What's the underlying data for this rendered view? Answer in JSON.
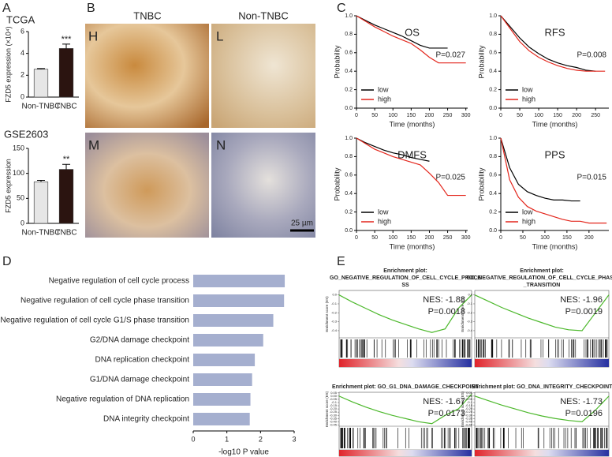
{
  "panel_letters": [
    "A",
    "B",
    "C",
    "D",
    "E"
  ],
  "micrographs": {
    "columns": [
      "TNBC",
      "Non-TNBC"
    ],
    "labels": [
      "H",
      "L",
      "M",
      "N"
    ],
    "scale_bar": "25 µm"
  },
  "chart_data": [
    {
      "type": "bar",
      "title": "TCGA",
      "y_label": "FZD5 expression (×10⁴)",
      "categories": [
        "Non-TNBC",
        "TNBC"
      ],
      "values": [
        2.55,
        4.45
      ],
      "errors": [
        0.06,
        0.4
      ],
      "colors": [
        "#e6e6e6",
        "#2b1410"
      ],
      "significance": [
        null,
        "***"
      ],
      "ylim": [
        0,
        6
      ],
      "yticks": [
        0,
        2,
        4,
        6
      ]
    },
    {
      "type": "bar",
      "title": "GSE2603",
      "y_label": "FZD5 expression",
      "categories": [
        "Non-TNBC",
        "TNBC"
      ],
      "values": [
        83,
        108
      ],
      "errors": [
        3,
        10
      ],
      "colors": [
        "#e6e6e6",
        "#2b1410"
      ],
      "significance": [
        null,
        "**"
      ],
      "ylim": [
        0,
        150
      ],
      "yticks": [
        0,
        50,
        100,
        150
      ]
    },
    {
      "type": "line",
      "title": "OS",
      "annotation": "P=0.027",
      "x_label": "Time (months)",
      "y_label": "Probability",
      "x": [
        0,
        25,
        50,
        75,
        100,
        125,
        150,
        175,
        200,
        225,
        250,
        300
      ],
      "series": [
        {
          "name": "low",
          "color": "#000000",
          "values": [
            1,
            0.95,
            0.9,
            0.86,
            0.82,
            0.78,
            0.73,
            0.68,
            0.65,
            0.65,
            0.65,
            null
          ]
        },
        {
          "name": "high",
          "color": "#e3261c",
          "values": [
            1,
            0.94,
            0.88,
            0.83,
            0.78,
            0.74,
            0.7,
            0.63,
            0.55,
            0.49,
            0.49,
            0.49
          ]
        }
      ],
      "xlim": [
        0,
        305
      ],
      "xticks": [
        0,
        50,
        100,
        150,
        200,
        250,
        300
      ],
      "ylim": [
        0,
        1
      ],
      "yticks": [
        {
          "value": 0,
          "label": "0.0"
        },
        0.2,
        0.4,
        0.6,
        0.8,
        {
          "value": 1,
          "label": "1.0"
        }
      ]
    },
    {
      "type": "line",
      "title": "RFS",
      "annotation": "P=0.008",
      "x_label": "Time (months)",
      "y_label": "Probability",
      "x": [
        0,
        25,
        50,
        75,
        100,
        125,
        150,
        175,
        200,
        225,
        250,
        275
      ],
      "series": [
        {
          "name": "low",
          "color": "#000000",
          "values": [
            1,
            0.88,
            0.76,
            0.66,
            0.59,
            0.53,
            0.49,
            0.46,
            0.44,
            0.41,
            0.4,
            null
          ]
        },
        {
          "name": "high",
          "color": "#e3261c",
          "values": [
            1,
            0.86,
            0.72,
            0.62,
            0.55,
            0.5,
            0.46,
            0.43,
            0.41,
            0.4,
            0.4,
            0.4
          ]
        }
      ],
      "xlim": [
        0,
        285
      ],
      "xticks": [
        0,
        50,
        100,
        150,
        200,
        250
      ],
      "ylim": [
        0,
        1
      ],
      "yticks": [
        {
          "value": 0,
          "label": "0.0"
        },
        0.2,
        0.4,
        0.6,
        0.8,
        {
          "value": 1,
          "label": "1.0"
        }
      ]
    },
    {
      "type": "line",
      "title": "DMFS",
      "annotation": "P=0.025",
      "x_label": "Time (months)",
      "y_label": "Probability",
      "x": [
        0,
        25,
        50,
        75,
        100,
        125,
        150,
        175,
        200,
        225,
        250,
        300
      ],
      "series": [
        {
          "name": "low",
          "color": "#000000",
          "values": [
            1,
            0.95,
            0.91,
            0.87,
            0.84,
            0.82,
            0.79,
            0.77,
            0.75,
            null,
            null,
            null
          ]
        },
        {
          "name": "high",
          "color": "#e3261c",
          "values": [
            1,
            0.94,
            0.88,
            0.84,
            0.8,
            0.77,
            0.74,
            0.71,
            0.62,
            0.52,
            0.38,
            0.38
          ]
        }
      ],
      "xlim": [
        0,
        305
      ],
      "xticks": [
        0,
        50,
        100,
        150,
        200,
        250,
        300
      ],
      "ylim": [
        0,
        1
      ],
      "yticks": [
        {
          "value": 0,
          "label": "0.0"
        },
        0.2,
        0.4,
        0.6,
        0.8,
        {
          "value": 1,
          "label": "1.0"
        }
      ]
    },
    {
      "type": "line",
      "title": "PPS",
      "annotation": "P=0.015",
      "x_label": "Time (months)",
      "y_label": "Probability",
      "x": [
        0,
        20,
        40,
        60,
        80,
        100,
        120,
        140,
        160,
        180,
        200,
        220,
        240
      ],
      "series": [
        {
          "name": "low",
          "color": "#000000",
          "values": [
            1,
            0.68,
            0.5,
            0.42,
            0.38,
            0.35,
            0.33,
            0.33,
            0.32,
            0.32,
            null,
            null,
            null
          ]
        },
        {
          "name": "high",
          "color": "#e3261c",
          "values": [
            1,
            0.55,
            0.36,
            0.26,
            0.21,
            0.18,
            0.15,
            0.12,
            0.1,
            0.1,
            0.08,
            0.08,
            0.08
          ]
        }
      ],
      "xlim": [
        0,
        245
      ],
      "xticks": [
        0,
        50,
        100,
        150,
        200
      ],
      "ylim": [
        0,
        1
      ],
      "yticks": [
        {
          "value": 0,
          "label": "0.0"
        },
        0.2,
        0.4,
        0.6,
        0.8,
        {
          "value": 1,
          "label": "1.0"
        }
      ]
    },
    {
      "type": "barh",
      "x_label": "-log10 P value",
      "categories": [
        "Negative regulation of cell cycle process",
        "Negative regulation of cell cycle phase transition",
        "Negative regulation of cell cycle G1/S phase transition",
        "G2/DNA damage checkpoint",
        "DNA replication checkpoint",
        "G1/DNA damage checkpoint",
        "Negative regulation of DNA replication",
        "DNA integrity checkpoint"
      ],
      "values": [
        2.72,
        2.7,
        2.38,
        2.08,
        1.83,
        1.75,
        1.7,
        1.68
      ],
      "color": "#a5afcf",
      "xlim": [
        0,
        3
      ],
      "xticks": [
        0,
        1,
        2,
        3
      ]
    },
    {
      "type": "gsea",
      "title_lines": [
        "Enrichment plot:",
        "GO_NEGATIVE_REGULATION_OF_CELL_CYCLE_PROCE",
        "SS"
      ],
      "y_label": "Enrichment score (ES)",
      "nes": "NES: -1.88",
      "p": "P=0.0018",
      "color": "#4cb82b",
      "x": [
        0,
        10,
        20,
        30,
        40,
        50,
        60,
        70,
        80,
        90,
        100
      ],
      "values": [
        0,
        -0.08,
        -0.15,
        -0.22,
        -0.28,
        -0.33,
        -0.38,
        -0.42,
        -0.38,
        -0.15,
        0
      ],
      "ylim": [
        -0.48,
        0.05
      ],
      "yticks": [
        {
          "value": 0,
          "label": "0.0"
        },
        -0.1,
        -0.2,
        -0.3,
        -0.4
      ]
    },
    {
      "type": "gsea",
      "title_lines": [
        "Enrichment plot:",
        "GO_NEGATIVE_REGULATION_OF_CELL_CYCLE_PHASE",
        "_TRANSITION"
      ],
      "y_label": "Enrichment score (ES)",
      "nes": "NES: -1.96",
      "p": "P=0.0019",
      "color": "#4cb82b",
      "x": [
        0,
        10,
        20,
        30,
        40,
        50,
        60,
        70,
        80,
        90,
        100
      ],
      "values": [
        0,
        -0.07,
        -0.14,
        -0.2,
        -0.26,
        -0.31,
        -0.36,
        -0.39,
        -0.4,
        -0.2,
        0
      ],
      "ylim": [
        -0.48,
        0.05
      ],
      "yticks": [
        {
          "value": 0,
          "label": "0.0"
        },
        -0.1,
        -0.2,
        -0.3,
        -0.4
      ]
    },
    {
      "type": "gsea",
      "title_lines": [
        "Enrichment plot: GO_G1_DNA_DAMAGE_CHECKPOINT"
      ],
      "y_label": "Enrichment score (ES)",
      "nes": "NES: -1.67",
      "p": "P=0.0173",
      "color": "#4cb82b",
      "x": [
        0,
        10,
        20,
        30,
        40,
        50,
        60,
        70,
        80,
        90,
        100
      ],
      "values": [
        0,
        -0.09,
        -0.17,
        -0.24,
        -0.3,
        -0.35,
        -0.4,
        -0.43,
        -0.3,
        -0.2,
        0.03
      ],
      "ylim": [
        -0.47,
        0.06
      ],
      "yticks": [
        {
          "value": 0.05,
          "label": "0.05"
        },
        {
          "value": 0,
          "label": "0.00"
        },
        -0.05,
        -0.1,
        -0.15,
        {
          "value": -0.2,
          "label": "-0.20"
        },
        -0.25,
        {
          "value": -0.3,
          "label": "-0.30"
        },
        -0.35,
        {
          "value": -0.4,
          "label": "-0.40"
        },
        -0.45
      ]
    },
    {
      "type": "gsea",
      "title_lines": [
        "Enrichment plot: GO_DNA_INTEGRITY_CHECKPOINT"
      ],
      "y_label": "Enrichment score (ES)",
      "nes": "NES: -1.73",
      "p": "P=0.0196",
      "color": "#4cb82b",
      "x": [
        0,
        10,
        20,
        30,
        40,
        50,
        60,
        70,
        80,
        90,
        100
      ],
      "values": [
        0,
        -0.07,
        -0.14,
        -0.2,
        -0.26,
        -0.31,
        -0.35,
        -0.38,
        -0.4,
        -0.22,
        0
      ],
      "ylim": [
        -0.47,
        0.06
      ],
      "yticks": [
        {
          "value": 0.05,
          "label": "0.05"
        },
        {
          "value": 0,
          "label": "0.00"
        },
        -0.05,
        -0.1,
        -0.15,
        {
          "value": -0.2,
          "label": "-0.20"
        },
        -0.25,
        {
          "value": -0.3,
          "label": "-0.30"
        },
        -0.35,
        {
          "value": -0.4,
          "label": "-0.40"
        },
        -0.45
      ]
    }
  ]
}
